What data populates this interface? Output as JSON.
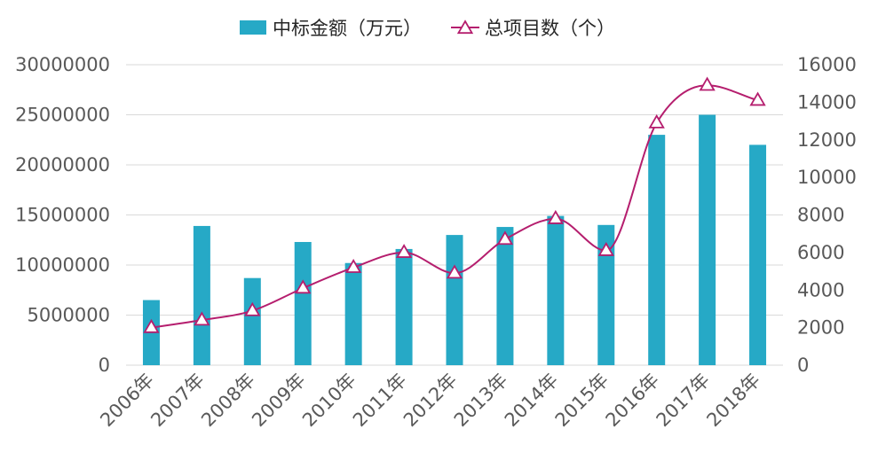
{
  "chart_data": {
    "type": "bar",
    "categories": [
      "2006年",
      "2007年",
      "2008年",
      "2009年",
      "2010年",
      "2011年",
      "2012年",
      "2013年",
      "2014年",
      "2015年",
      "2016年",
      "2017年",
      "2018年"
    ],
    "series": [
      {
        "name": "中标金额（万元）",
        "type": "bar",
        "axis": "left",
        "color": "#26A9C6",
        "values": [
          6500000,
          13900000,
          8700000,
          12300000,
          10200000,
          11600000,
          13000000,
          13800000,
          14900000,
          14000000,
          23000000,
          25000000,
          22000000
        ]
      },
      {
        "name": "总项目数（个）",
        "type": "line",
        "axis": "right",
        "smooth": true,
        "marker": "triangle",
        "color": "#B51E6E",
        "values": [
          2000,
          2400,
          2900,
          4100,
          5200,
          6000,
          4900,
          6700,
          7800,
          6100,
          12900,
          14900,
          14100
        ]
      }
    ],
    "left_axis": {
      "ylim": [
        0,
        30000000
      ],
      "ticks": [
        "0",
        "5000000",
        "10000000",
        "15000000",
        "20000000",
        "25000000",
        "30000000"
      ]
    },
    "right_axis": {
      "ylim": [
        0,
        16000
      ],
      "ticks": [
        "0",
        "2000",
        "4000",
        "6000",
        "8000",
        "10000",
        "12000",
        "14000",
        "16000"
      ]
    },
    "grid": true,
    "legend_position": "top"
  }
}
